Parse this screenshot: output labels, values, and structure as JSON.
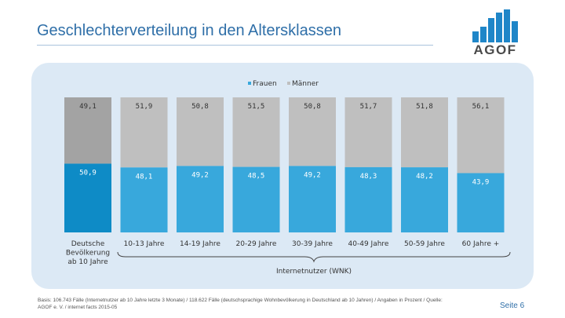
{
  "header": {
    "title": "Geschlechterverteilung in den Altersklassen",
    "logo_text": "AGOF"
  },
  "chart_data": {
    "type": "bar",
    "stacked": true,
    "categories": [
      "Deutsche Bevölkerung ab 10 Jahre",
      "10-13 Jahre",
      "14-19 Jahre",
      "20-29 Jahre",
      "30-39 Jahre",
      "40-49 Jahre",
      "50-59 Jahre",
      "60 Jahre +"
    ],
    "category_lines": [
      [
        "Deutsche",
        "Bevölkerung",
        "ab 10 Jahre"
      ],
      [
        "10-13 Jahre"
      ],
      [
        "14-19 Jahre"
      ],
      [
        "20-29 Jahre"
      ],
      [
        "30-39 Jahre"
      ],
      [
        "40-49 Jahre"
      ],
      [
        "50-59 Jahre"
      ],
      [
        "60 Jahre +"
      ]
    ],
    "series": [
      {
        "name": "Frauen",
        "values": [
          50.9,
          48.1,
          49.2,
          48.5,
          49.2,
          48.3,
          48.2,
          43.9
        ],
        "labels": [
          "50,9",
          "48,1",
          "49,2",
          "48,5",
          "49,2",
          "48,3",
          "48,2",
          "43,9"
        ],
        "colors": [
          "#0e8bc6",
          "#38a8dc",
          "#38a8dc",
          "#38a8dc",
          "#38a8dc",
          "#38a8dc",
          "#38a8dc",
          "#38a8dc"
        ]
      },
      {
        "name": "Männer",
        "values": [
          49.1,
          51.9,
          50.8,
          51.5,
          50.8,
          51.7,
          51.8,
          56.1
        ],
        "labels": [
          "49,1",
          "51,9",
          "50,8",
          "51,5",
          "50,8",
          "51,7",
          "51,8",
          "56,1"
        ],
        "colors": [
          "#a3a3a3",
          "#bfbfbf",
          "#bfbfbf",
          "#bfbfbf",
          "#bfbfbf",
          "#bfbfbf",
          "#bfbfbf",
          "#bfbfbf"
        ]
      }
    ],
    "legend": {
      "position": "top-center",
      "entries": [
        "Frauen",
        "Männer"
      ],
      "colors": [
        "#38a8dc",
        "#bfbfbf"
      ]
    },
    "ylim": [
      0,
      100
    ],
    "group_label": "Internetnutzer (WNK)",
    "xlabel": "",
    "ylabel": ""
  },
  "footer": {
    "note": "Basis: 106.743 Fälle (Internetnutzer ab 10 Jahre letzte 3 Monate) / 118.622 Fälle (deutschsprachige Wohnbevölkerung in Deutschland ab 10 Jahren) / Angaben in Prozent / Quelle: AGOF e. V. / internet facts 2015-05",
    "page": "Seite 6"
  }
}
